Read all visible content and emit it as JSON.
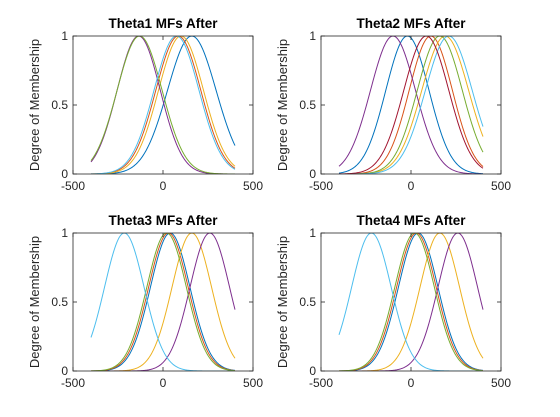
{
  "chart_data": [
    {
      "type": "line",
      "title": "Theta1 MFs After",
      "ylabel": "Degree of Membership",
      "xlim": [
        -500,
        500
      ],
      "ylim": [
        0,
        1
      ],
      "xticks": [
        "-500",
        "0",
        "500"
      ],
      "yticks": [
        "0",
        "0.5",
        "1"
      ],
      "x_range": [
        -400,
        400
      ],
      "series": [
        {
          "mean": 160,
          "sigma": 135,
          "color": "#0072bd"
        },
        {
          "mean": 85,
          "sigma": 125,
          "color": "#d95319"
        },
        {
          "mean": 100,
          "sigma": 125,
          "color": "#edb120"
        },
        {
          "mean": -135,
          "sigma": 120,
          "color": "#7e2f8e"
        },
        {
          "mean": -130,
          "sigma": 125,
          "color": "#77ac30"
        },
        {
          "mean": 75,
          "sigma": 125,
          "color": "#4dbeee"
        }
      ]
    },
    {
      "type": "line",
      "title": "Theta2 MFs After",
      "ylabel": "Degree of Membership",
      "xlim": [
        -500,
        500
      ],
      "ylim": [
        0,
        1
      ],
      "xticks": [
        "-500",
        "0",
        "500"
      ],
      "yticks": [
        "0",
        "0.5",
        "1"
      ],
      "x_range": [
        -400,
        400
      ],
      "series": [
        {
          "mean": -20,
          "sigma": 120,
          "color": "#0072bd"
        },
        {
          "mean": 110,
          "sigma": 120,
          "color": "#d95319"
        },
        {
          "mean": 190,
          "sigma": 130,
          "color": "#edb120"
        },
        {
          "mean": -100,
          "sigma": 125,
          "color": "#7e2f8e"
        },
        {
          "mean": 160,
          "sigma": 125,
          "color": "#77ac30"
        },
        {
          "mean": 210,
          "sigma": 130,
          "color": "#4dbeee"
        },
        {
          "mean": 85,
          "sigma": 125,
          "color": "#a2142f"
        }
      ]
    },
    {
      "type": "line",
      "title": "Theta3 MFs After",
      "ylabel": "Degree of Membership",
      "xlim": [
        -500,
        500
      ],
      "ylim": [
        0,
        1
      ],
      "xticks": [
        "-500",
        "0",
        "500"
      ],
      "yticks": [
        "0",
        "0.5",
        "1"
      ],
      "x_range": [
        -400,
        400
      ],
      "series": [
        {
          "mean": 40,
          "sigma": 110,
          "color": "#0072bd"
        },
        {
          "mean": 30,
          "sigma": 110,
          "color": "#d95319"
        },
        {
          "mean": 160,
          "sigma": 110,
          "color": "#edb120"
        },
        {
          "mean": 260,
          "sigma": 110,
          "color": "#7e2f8e"
        },
        {
          "mean": 20,
          "sigma": 110,
          "color": "#77ac30"
        },
        {
          "mean": -215,
          "sigma": 110,
          "color": "#4dbeee"
        }
      ]
    },
    {
      "type": "line",
      "title": "Theta4 MFs After",
      "ylabel": "Degree of Membership",
      "xlim": [
        -500,
        500
      ],
      "ylim": [
        0,
        1
      ],
      "xticks": [
        "-500",
        "0",
        "500"
      ],
      "yticks": [
        "0",
        "0.5",
        "1"
      ],
      "x_range": [
        -400,
        400
      ],
      "series": [
        {
          "mean": 40,
          "sigma": 110,
          "color": "#0072bd"
        },
        {
          "mean": 30,
          "sigma": 110,
          "color": "#d95319"
        },
        {
          "mean": 160,
          "sigma": 110,
          "color": "#edb120"
        },
        {
          "mean": 260,
          "sigma": 110,
          "color": "#7e2f8e"
        },
        {
          "mean": 20,
          "sigma": 110,
          "color": "#77ac30"
        },
        {
          "mean": -220,
          "sigma": 110,
          "color": "#4dbeee"
        }
      ]
    }
  ]
}
